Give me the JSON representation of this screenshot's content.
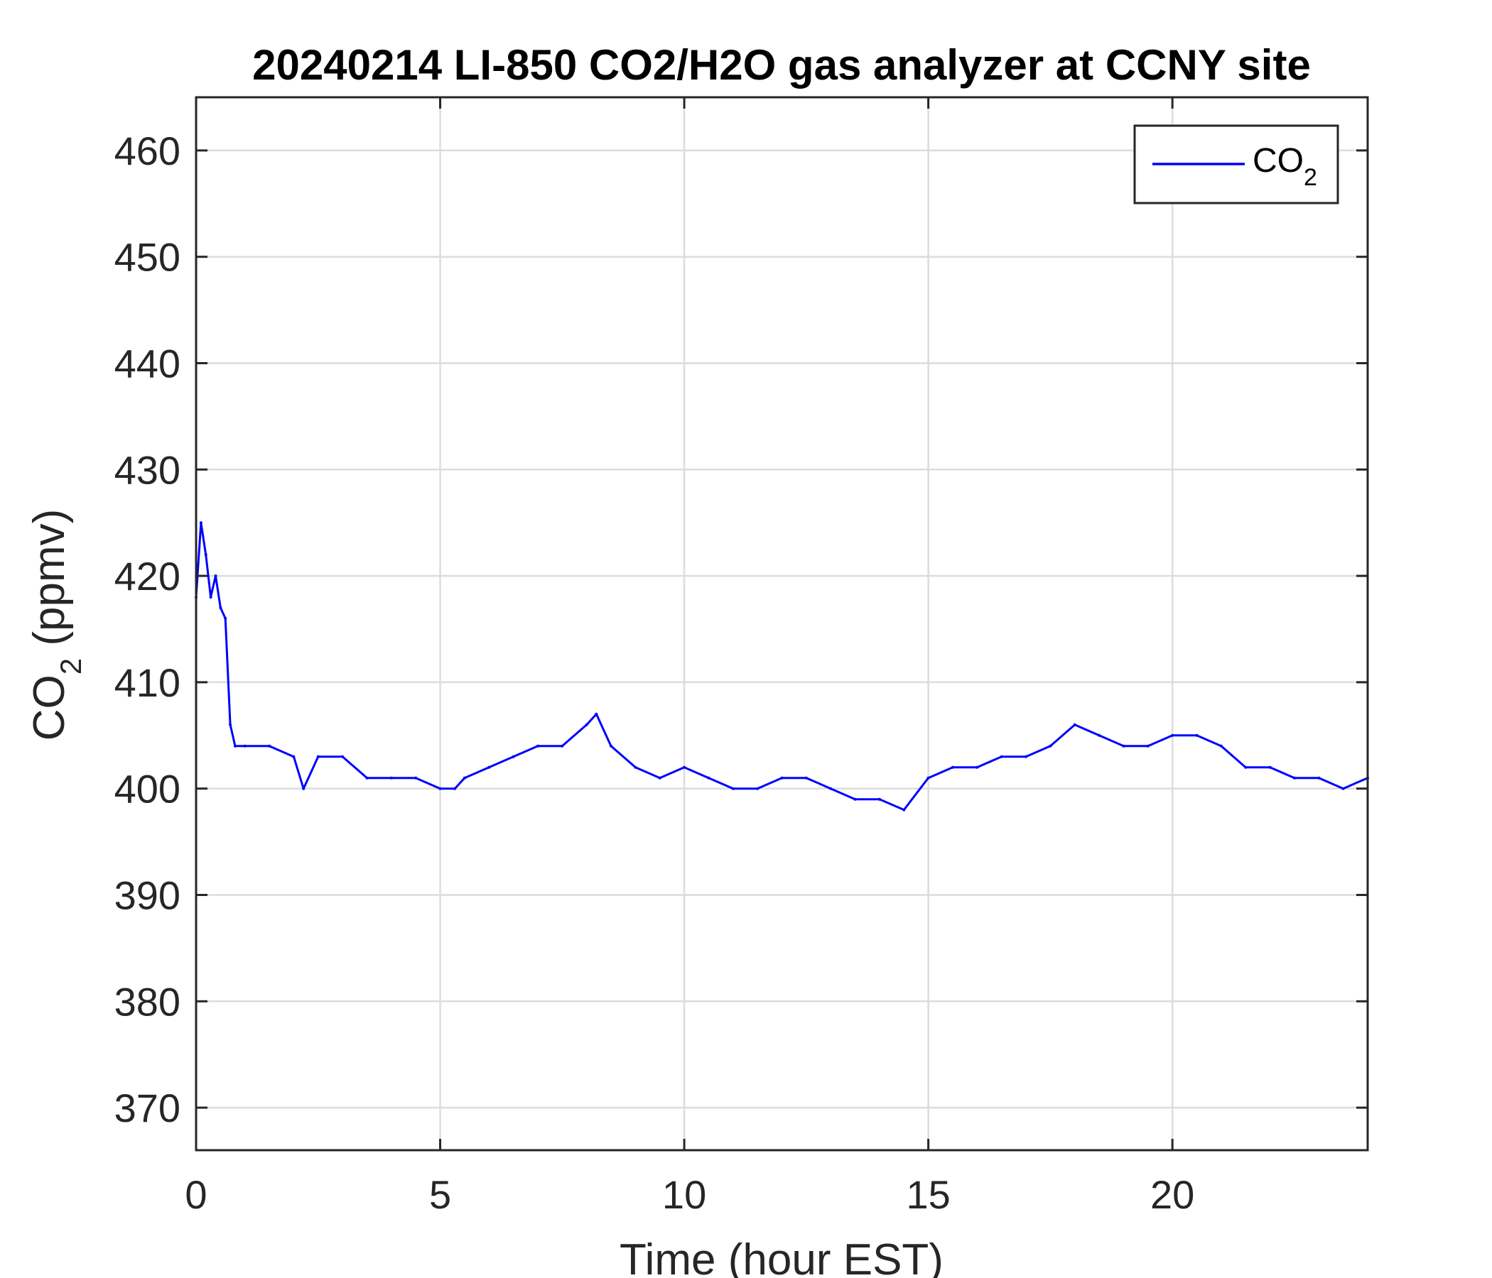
{
  "chart_data": {
    "type": "line",
    "title": "20240214 LI-850 CO2/H2O gas analyzer at CCNY site",
    "xlabel": "Time (hour EST)",
    "ylabel_main": "CO",
    "ylabel_sub": "2",
    "ylabel_unit": " (ppmv)",
    "xlim": [
      0,
      24
    ],
    "ylim": [
      366,
      465
    ],
    "xticks": [
      0,
      5,
      10,
      15,
      20
    ],
    "yticks": [
      370,
      380,
      390,
      400,
      410,
      420,
      430,
      440,
      450,
      460
    ],
    "grid": true,
    "legend": {
      "placement": "top-right",
      "label_main": "CO",
      "label_sub": "2"
    },
    "series": [
      {
        "name": "CO2",
        "color": "#0000ff",
        "x": [
          0,
          0.1,
          0.2,
          0.3,
          0.4,
          0.5,
          0.6,
          0.7,
          0.8,
          1,
          1.5,
          2,
          2.2,
          2.5,
          3,
          3.5,
          4,
          4.5,
          5,
          5.3,
          5.5,
          6,
          6.5,
          7,
          7.5,
          8,
          8.2,
          8.5,
          9,
          9.5,
          10,
          10.5,
          11,
          11.5,
          12,
          12.5,
          13,
          13.5,
          14,
          14.5,
          15,
          15.5,
          16,
          16.5,
          17,
          17.5,
          18,
          18.5,
          19,
          19.5,
          20,
          20.5,
          21,
          21.5,
          22,
          22.5,
          23,
          23.5,
          24
        ],
        "y": [
          418,
          425,
          422,
          418,
          420,
          417,
          416,
          406,
          404,
          404,
          404,
          403,
          400,
          403,
          403,
          401,
          401,
          401,
          400,
          400,
          401,
          402,
          403,
          404,
          404,
          406,
          407,
          404,
          402,
          401,
          402,
          401,
          400,
          400,
          401,
          401,
          400,
          399,
          399,
          398,
          401,
          402,
          402,
          403,
          403,
          404,
          406,
          405,
          404,
          404,
          405,
          405,
          404,
          402,
          402,
          401,
          401,
          400,
          401
        ]
      }
    ]
  }
}
